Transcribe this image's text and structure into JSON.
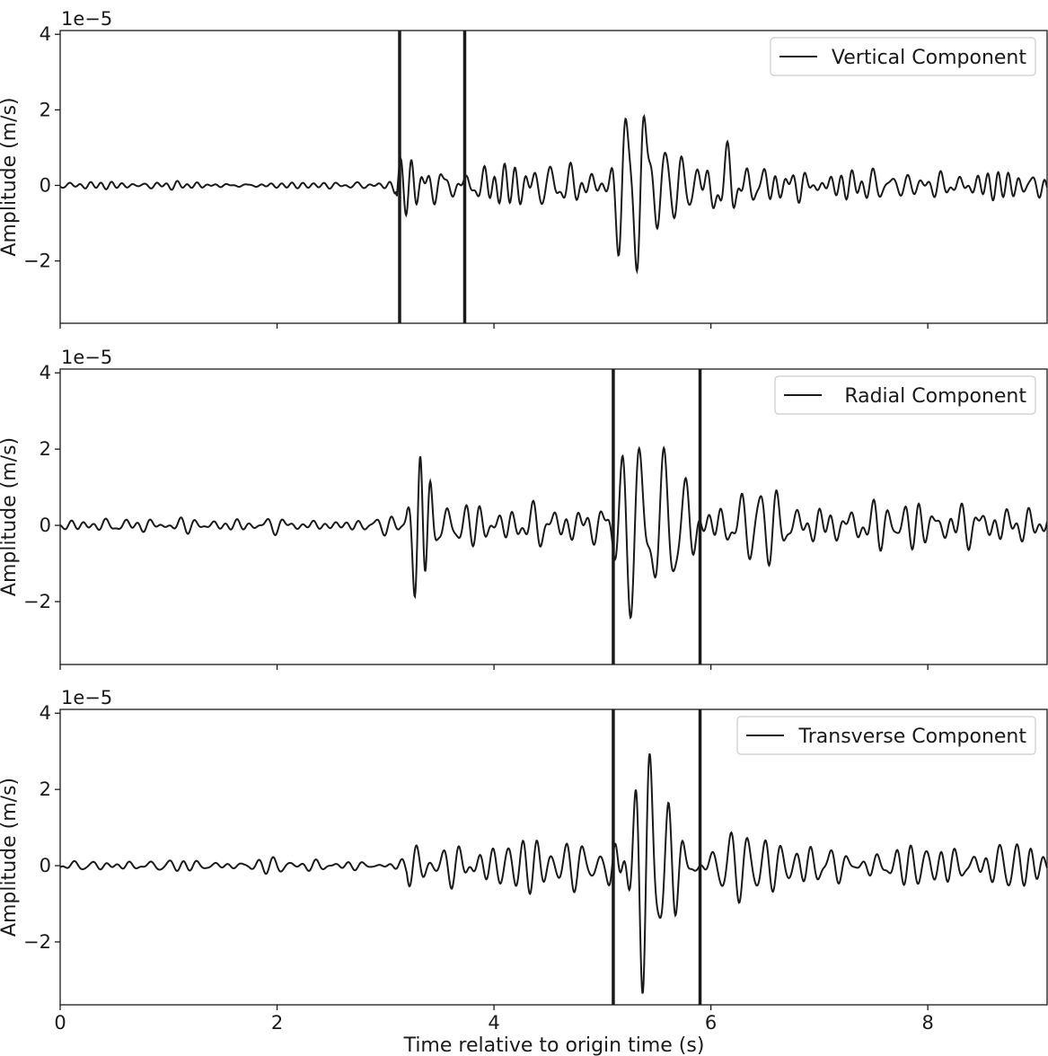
{
  "figure": {
    "xlabel": "Time relative to origin time (s)",
    "x_ticks": [
      "0",
      "2",
      "4",
      "6",
      "8"
    ]
  },
  "chart_data": [
    {
      "type": "line",
      "series": [
        {
          "name": "Vertical Component"
        }
      ],
      "ylabel": "Amplitude (m/s)",
      "offset_text": "1e−5",
      "y_ticks": [
        "4",
        "2",
        "0",
        "−2"
      ],
      "xlim": [
        0,
        9.1
      ],
      "ylim": [
        -3.65,
        4.1
      ],
      "pick_lines": [
        3.13,
        3.73
      ],
      "legend_loc": "upper right",
      "wavelets": [
        [
          3.22,
          0.8,
          0.075,
          9.0
        ],
        [
          3.5,
          0.25,
          0.12,
          9.0
        ],
        [
          5.18,
          2.45,
          0.055,
          6.5
        ],
        [
          5.35,
          2.9,
          0.055,
          6.5
        ],
        [
          5.55,
          1.3,
          0.14,
          6.5
        ],
        [
          6.1,
          0.75,
          0.1,
          5.0
        ],
        [
          6.7,
          0.45,
          0.09,
          7.0
        ]
      ]
    },
    {
      "type": "line",
      "series": [
        {
          "name": "Radial Component"
        }
      ],
      "ylabel": "Amplitude (m/s)",
      "offset_text": "1e−5",
      "y_ticks": [
        "4",
        "2",
        "0",
        "−2"
      ],
      "xlim": [
        0,
        9.1
      ],
      "ylim": [
        -3.65,
        4.1
      ],
      "pick_lines": [
        5.1,
        5.9
      ],
      "legend_loc": "upper right",
      "wavelets": [
        [
          3.3,
          2.0,
          0.055,
          8.0
        ],
        [
          3.38,
          2.2,
          0.055,
          8.0
        ],
        [
          4.3,
          0.35,
          0.35,
          7.0
        ],
        [
          5.3,
          2.8,
          0.11,
          6.5
        ],
        [
          5.52,
          2.1,
          0.1,
          6.5
        ],
        [
          5.72,
          1.6,
          0.12,
          6.5
        ],
        [
          6.4,
          0.8,
          0.22,
          6.0
        ]
      ]
    },
    {
      "type": "line",
      "series": [
        {
          "name": "Transverse Component"
        }
      ],
      "ylabel": "Amplitude (m/s)",
      "offset_text": "1e−5",
      "y_ticks": [
        "4",
        "2",
        "0",
        "−2"
      ],
      "xlim": [
        0,
        9.1
      ],
      "ylim": [
        -3.65,
        4.1
      ],
      "pick_lines": [
        5.1,
        5.9
      ],
      "legend_loc": "upper right",
      "wavelets": [
        [
          3.5,
          0.4,
          0.25,
          7.5
        ],
        [
          4.5,
          0.3,
          0.35,
          7.5
        ],
        [
          5.1,
          0.8,
          0.05,
          7.5
        ],
        [
          5.4,
          3.9,
          0.085,
          7.5
        ],
        [
          5.58,
          1.8,
          0.13,
          7.5
        ],
        [
          6.3,
          0.75,
          0.25,
          6.5
        ],
        [
          7.2,
          0.4,
          0.3,
          6.5
        ]
      ]
    }
  ]
}
